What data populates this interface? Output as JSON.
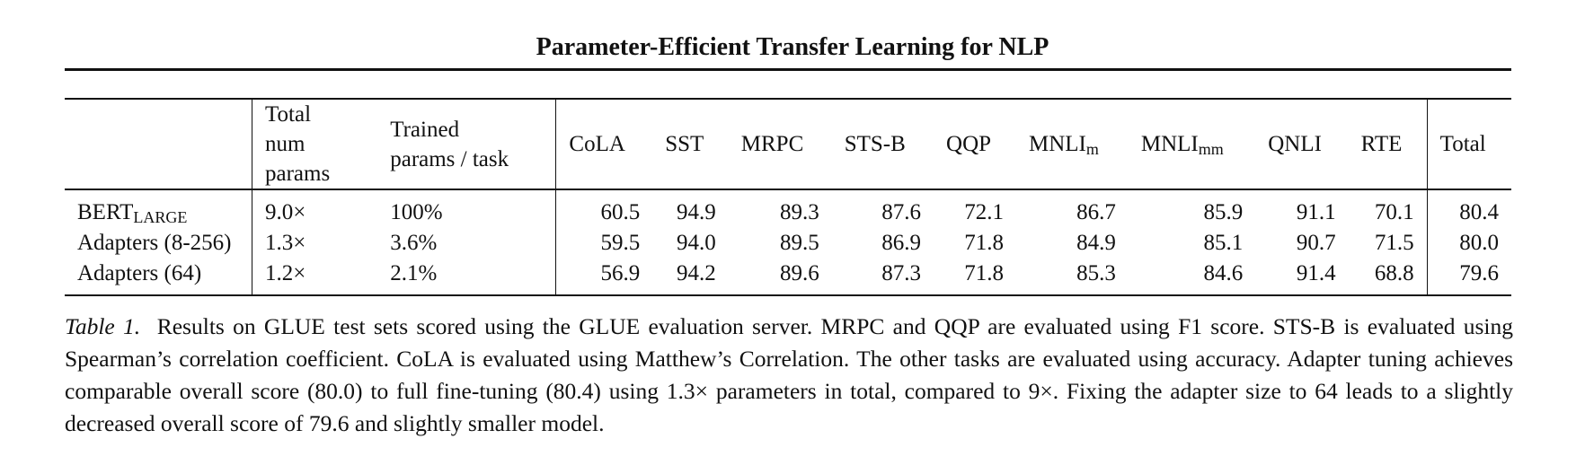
{
  "header": {
    "title": "Parameter-Efficient Transfer Learning for NLP"
  },
  "table": {
    "columns": [
      {
        "label": "",
        "sub": ""
      },
      {
        "label": "Total num params",
        "sub": ""
      },
      {
        "label": "Trained params / task",
        "sub": ""
      },
      {
        "label": "CoLA",
        "sub": ""
      },
      {
        "label": "SST",
        "sub": ""
      },
      {
        "label": "MRPC",
        "sub": ""
      },
      {
        "label": "STS-B",
        "sub": ""
      },
      {
        "label": "QQP",
        "sub": ""
      },
      {
        "label": "MNLI",
        "sub": "m"
      },
      {
        "label": "MNLI",
        "sub": "mm"
      },
      {
        "label": "QNLI",
        "sub": ""
      },
      {
        "label": "RTE",
        "sub": ""
      },
      {
        "label": "Total",
        "sub": ""
      }
    ],
    "rows": [
      {
        "model": "BERT",
        "model_sub": "LARGE",
        "cells": [
          "9.0×",
          "100%",
          "60.5",
          "94.9",
          "89.3",
          "87.6",
          "72.1",
          "86.7",
          "85.9",
          "91.1",
          "70.1",
          "80.4"
        ]
      },
      {
        "model": "Adapters (8-256)",
        "model_sub": "",
        "cells": [
          "1.3×",
          "3.6%",
          "59.5",
          "94.0",
          "89.5",
          "86.9",
          "71.8",
          "84.9",
          "85.1",
          "90.7",
          "71.5",
          "80.0"
        ]
      },
      {
        "model": "Adapters (64)",
        "model_sub": "",
        "cells": [
          "1.2×",
          "2.1%",
          "56.9",
          "94.2",
          "89.6",
          "87.3",
          "71.8",
          "85.3",
          "84.6",
          "91.4",
          "68.8",
          "79.6"
        ]
      }
    ]
  },
  "caption": {
    "label": "Table 1.",
    "text": "Results on GLUE test sets scored using the GLUE evaluation server. MRPC and QQP are evaluated using F1 score. STS-B is evaluated using Spearman’s correlation coefficient. CoLA is evaluated using Matthew’s Correlation. The other tasks are evaluated using accuracy. Adapter tuning achieves comparable overall score (80.0) to full fine-tuning (80.4) using 1.3× parameters in total, compared to 9×. Fixing the adapter size to 64 leads to a slightly decreased overall score of 79.6 and slightly smaller model."
  }
}
